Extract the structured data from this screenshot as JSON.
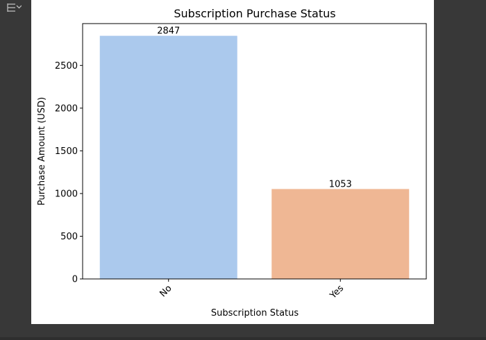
{
  "cell_output": {
    "icon": "output-toggle-icon"
  },
  "chart_data": {
    "type": "bar",
    "title": "Subscription Purchase Status",
    "xlabel": "Subscription Status",
    "ylabel": "Purchase Amount (USD)",
    "categories": [
      "No",
      "Yes"
    ],
    "values": [
      2847,
      1053
    ],
    "bar_labels": [
      "2847",
      "1053"
    ],
    "ylim": [
      0,
      2990
    ],
    "yticks": [
      0,
      500,
      1000,
      1500,
      2000,
      2500
    ],
    "ytick_labels": [
      "0",
      "500",
      "1000",
      "1500",
      "2000",
      "2500"
    ],
    "colors": [
      "#abc9ed",
      "#efb794"
    ],
    "grid": false,
    "xtick_rotation": 45
  }
}
